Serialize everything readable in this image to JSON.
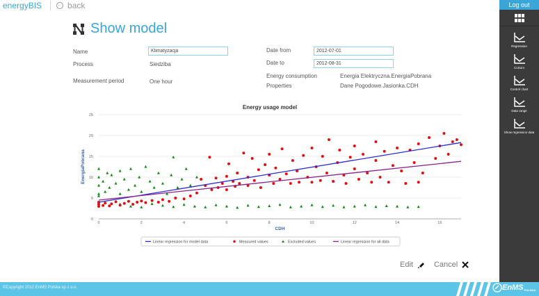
{
  "header": {
    "brand": "energyBIS",
    "back_label": "back"
  },
  "page": {
    "title": "Show model"
  },
  "form": {
    "name_label": "Name",
    "name_value": "Klimatyzacja",
    "process_label": "Process",
    "process_value": "Siedziba",
    "period_label": "Measurement period",
    "period_value": "One hour",
    "date_from_label": "Date from",
    "date_from_value": "2012-07-01",
    "date_to_label": "Date to",
    "date_to_value": "2012-08-31",
    "consumption_label": "Energy consumption",
    "consumption_value": "Energia Elektryczna.EnergiaPobrana",
    "properties_label": "Properties",
    "properties_value": "Dane Pogodowe Jasionka.CDH"
  },
  "chart_data": {
    "type": "scatter",
    "title": "Energy usage model",
    "xlabel": "CDH",
    "ylabel": "EnergiaPobrana",
    "xlim": [
      0,
      17
    ],
    "ylim": [
      0,
      25
    ],
    "x_ticks": [
      0,
      2,
      4,
      6,
      8,
      10,
      12,
      14,
      16
    ],
    "y_ticks": [
      0,
      5,
      10,
      15,
      20,
      25
    ],
    "grid": true,
    "legend_position": "bottom",
    "colors": {
      "model_line": "#2a2ad0",
      "measured": "#e01010",
      "excluded": "#118811",
      "all_line": "#8a1f8a"
    },
    "series": [
      {
        "name": "Linear regression for model data",
        "kind": "line",
        "points": [
          [
            0,
            4.0
          ],
          [
            17,
            18.3
          ]
        ]
      },
      {
        "name": "Measured values",
        "kind": "scatter",
        "points": [
          [
            0,
            3.0
          ],
          [
            0,
            3.5
          ],
          [
            0,
            4.0
          ],
          [
            0.2,
            3.2
          ],
          [
            0.3,
            3.8
          ],
          [
            0.5,
            3.1
          ],
          [
            0.6,
            3.6
          ],
          [
            0.8,
            4.1
          ],
          [
            1.0,
            3.3
          ],
          [
            1.2,
            3.7
          ],
          [
            1.4,
            4.2
          ],
          [
            1.6,
            3.5
          ],
          [
            1.8,
            4.0
          ],
          [
            2.0,
            4.3
          ],
          [
            2.2,
            3.9
          ],
          [
            2.5,
            4.4
          ],
          [
            2.8,
            4.0
          ],
          [
            3.0,
            4.6
          ],
          [
            3.3,
            4.2
          ],
          [
            3.6,
            5.0
          ],
          [
            4.0,
            4.8
          ],
          [
            4.3,
            5.5
          ],
          [
            4.6,
            6.2
          ],
          [
            4.8,
            9.5
          ],
          [
            5.0,
            8.0
          ],
          [
            5.2,
            14.8
          ],
          [
            5.3,
            7.0
          ],
          [
            5.5,
            9.8
          ],
          [
            5.6,
            7.5
          ],
          [
            5.8,
            8.5
          ],
          [
            6.0,
            10.2
          ],
          [
            6.0,
            7.0
          ],
          [
            6.1,
            13.2
          ],
          [
            6.3,
            9.0
          ],
          [
            6.4,
            7.8
          ],
          [
            6.5,
            11.0
          ],
          [
            6.6,
            8.5
          ],
          [
            6.8,
            15.8
          ],
          [
            7.0,
            10.0
          ],
          [
            7.0,
            8.0
          ],
          [
            7.2,
            14.5
          ],
          [
            7.3,
            9.2
          ],
          [
            7.5,
            11.8
          ],
          [
            7.6,
            7.5
          ],
          [
            7.8,
            13.0
          ],
          [
            8.0,
            10.5
          ],
          [
            8.0,
            15.5
          ],
          [
            8.2,
            8.5
          ],
          [
            8.3,
            12.2
          ],
          [
            8.5,
            9.5
          ],
          [
            8.6,
            16.8
          ],
          [
            8.8,
            10.8
          ],
          [
            9.0,
            8.5
          ],
          [
            9.1,
            14.0
          ],
          [
            9.3,
            11.5
          ],
          [
            9.4,
            8.8
          ],
          [
            9.6,
            15.2
          ],
          [
            9.8,
            10.0
          ],
          [
            10.0,
            17.0
          ],
          [
            10.0,
            8.8
          ],
          [
            10.2,
            12.5
          ],
          [
            10.4,
            9.2
          ],
          [
            10.5,
            15.0
          ],
          [
            10.7,
            11.0
          ],
          [
            10.8,
            19.0
          ],
          [
            11.0,
            9.0
          ],
          [
            11.2,
            13.5
          ],
          [
            11.3,
            16.5
          ],
          [
            11.5,
            10.5
          ],
          [
            11.6,
            8.5
          ],
          [
            11.8,
            14.8
          ],
          [
            12.0,
            12.0
          ],
          [
            12.0,
            17.5
          ],
          [
            12.2,
            9.5
          ],
          [
            12.4,
            15.5
          ],
          [
            12.6,
            11.0
          ],
          [
            12.8,
            8.8
          ],
          [
            13.0,
            14.0
          ],
          [
            13.0,
            18.5
          ],
          [
            13.2,
            10.0
          ],
          [
            13.4,
            16.2
          ],
          [
            13.6,
            8.8
          ],
          [
            13.8,
            12.8
          ],
          [
            14.0,
            17.0
          ],
          [
            14.2,
            11.5
          ],
          [
            14.4,
            8.5
          ],
          [
            14.6,
            16.5
          ],
          [
            14.8,
            13.5
          ],
          [
            15.0,
            8.8
          ],
          [
            15.0,
            18.0
          ],
          [
            15.2,
            11.0
          ],
          [
            15.5,
            19.5
          ],
          [
            15.8,
            14.5
          ],
          [
            16.0,
            17.5
          ],
          [
            16.2,
            20.5
          ],
          [
            16.4,
            15.5
          ],
          [
            16.6,
            18.5
          ],
          [
            16.8,
            19.0
          ],
          [
            17.0,
            17.8
          ]
        ]
      },
      {
        "name": "Excluded values",
        "kind": "scatter",
        "points": [
          [
            0,
            6.0
          ],
          [
            0,
            8.0
          ],
          [
            0,
            10.0
          ],
          [
            0,
            12.0
          ],
          [
            0,
            5.5
          ],
          [
            0.2,
            9.0
          ],
          [
            0.3,
            6.5
          ],
          [
            0.4,
            11.0
          ],
          [
            0.5,
            7.5
          ],
          [
            0.6,
            10.5
          ],
          [
            0.8,
            8.5
          ],
          [
            1.0,
            6.0
          ],
          [
            1.0,
            11.5
          ],
          [
            1.2,
            9.5
          ],
          [
            1.4,
            7.0
          ],
          [
            1.5,
            12.0
          ],
          [
            1.7,
            8.0
          ],
          [
            1.9,
            10.0
          ],
          [
            2.0,
            6.5
          ],
          [
            2.2,
            12.5
          ],
          [
            2.4,
            9.0
          ],
          [
            2.6,
            7.5
          ],
          [
            2.8,
            11.0
          ],
          [
            3.0,
            8.5
          ],
          [
            3.2,
            6.0
          ],
          [
            3.4,
            10.5
          ],
          [
            3.5,
            14.8
          ],
          [
            3.7,
            7.5
          ],
          [
            3.9,
            9.5
          ],
          [
            4.1,
            12.0
          ],
          [
            4.3,
            8.0
          ],
          [
            4.6,
            10.0
          ],
          [
            0.5,
            3.2
          ],
          [
            1.0,
            3.5
          ],
          [
            1.5,
            3.0
          ],
          [
            2.0,
            2.8
          ],
          [
            2.5,
            3.6
          ],
          [
            3.0,
            3.2
          ],
          [
            3.5,
            2.9
          ],
          [
            4.0,
            3.4
          ],
          [
            4.5,
            3.0
          ],
          [
            5.0,
            2.8
          ],
          [
            5.5,
            3.3
          ],
          [
            6.0,
            3.0
          ],
          [
            6.5,
            2.7
          ],
          [
            7.0,
            3.2
          ],
          [
            7.5,
            2.9
          ],
          [
            8.0,
            3.1
          ],
          [
            8.5,
            3.4
          ],
          [
            9.0,
            2.8
          ],
          [
            9.5,
            3.0
          ],
          [
            10.0,
            3.3
          ],
          [
            10.5,
            2.9
          ],
          [
            11.0,
            3.2
          ],
          [
            11.5,
            2.8
          ],
          [
            12.0,
            3.0
          ],
          [
            12.5,
            3.3
          ],
          [
            13.0,
            2.9
          ],
          [
            13.5,
            3.1
          ],
          [
            14.0,
            3.0
          ],
          [
            14.5,
            2.8
          ],
          [
            15.0,
            2.9
          ]
        ]
      },
      {
        "name": "Linear regression for all data",
        "kind": "line",
        "points": [
          [
            0,
            4.5
          ],
          [
            17,
            13.8
          ]
        ]
      }
    ]
  },
  "actions": {
    "edit_label": "Edit",
    "cancel_label": "Cancel"
  },
  "sidebar": {
    "logout_label": "Log out",
    "items": [
      {
        "label": "Regression"
      },
      {
        "label": "CuSum"
      },
      {
        "label": "Control chart"
      },
      {
        "label": "Data range"
      },
      {
        "label": "Show regression data"
      }
    ]
  },
  "footer": {
    "copyright": "©Copyright 2012 EnMS Polska sp z o.o.",
    "logo_text": "EnMS",
    "logo_sub": "POLSKA"
  }
}
